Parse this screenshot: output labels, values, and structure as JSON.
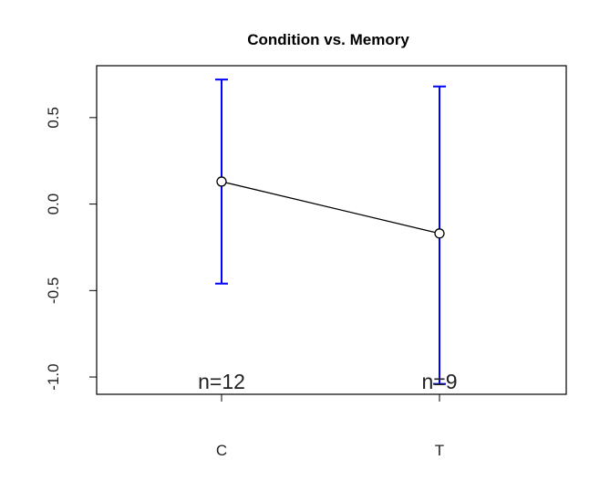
{
  "chart_data": {
    "type": "line",
    "title": "Condition vs. Memory",
    "xlabel": "",
    "ylabel": "",
    "categories": [
      "C",
      "T"
    ],
    "series": [
      {
        "values": [
          0.13,
          -0.17
        ],
        "error_low": [
          -0.46,
          -1.04
        ],
        "error_high": [
          0.72,
          0.68
        ]
      }
    ],
    "sample_sizes": [
      "n=12",
      "n=9"
    ],
    "yticks": [
      -1.0,
      -0.5,
      0.0,
      0.5
    ],
    "ytick_labels": [
      "-1.0",
      "-0.5",
      "0.0",
      "0.5"
    ],
    "ylim": [
      -1.1,
      0.8
    ],
    "grid": false,
    "colors": {
      "line": "#000000",
      "error_bars": "#0000ff",
      "frame": "#000000"
    }
  }
}
